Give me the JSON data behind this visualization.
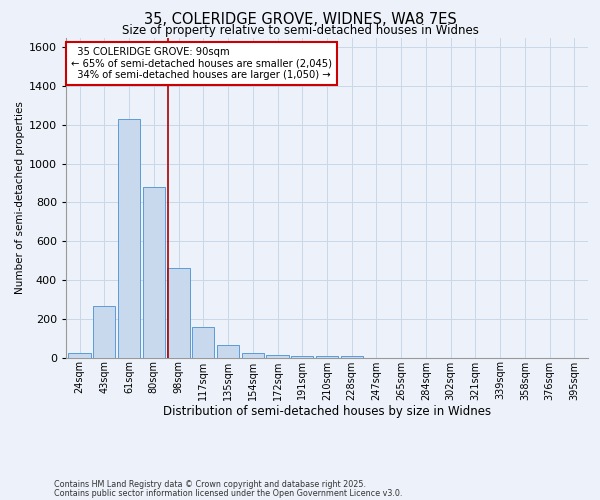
{
  "title1": "35, COLERIDGE GROVE, WIDNES, WA8 7ES",
  "title2": "Size of property relative to semi-detached houses in Widnes",
  "xlabel": "Distribution of semi-detached houses by size in Widnes",
  "ylabel": "Number of semi-detached properties",
  "categories": [
    "24sqm",
    "43sqm",
    "61sqm",
    "80sqm",
    "98sqm",
    "117sqm",
    "135sqm",
    "154sqm",
    "172sqm",
    "191sqm",
    "210sqm",
    "228sqm",
    "247sqm",
    "265sqm",
    "284sqm",
    "302sqm",
    "321sqm",
    "339sqm",
    "358sqm",
    "376sqm",
    "395sqm"
  ],
  "values": [
    25,
    265,
    1230,
    880,
    460,
    155,
    65,
    25,
    15,
    10,
    10,
    10,
    0,
    0,
    0,
    0,
    0,
    0,
    0,
    0,
    0
  ],
  "bar_color": "#c8d9ee",
  "bar_edge_color": "#5b9bd5",
  "grid_color": "#c8d8e8",
  "background_color": "#edf2fa",
  "fig_background_color": "#edf2fa",
  "annotation_box_color": "#ffffff",
  "annotation_box_edge": "#cc0000",
  "red_line_color": "#aa0000",
  "property_name": "35 COLERIDGE GROVE: 90sqm",
  "pct_smaller": "65% of semi-detached houses are smaller (2,045)",
  "pct_larger": "34% of semi-detached houses are larger (1,050)",
  "ylim": [
    0,
    1650
  ],
  "yticks": [
    0,
    200,
    400,
    600,
    800,
    1000,
    1200,
    1400,
    1600
  ],
  "footnote1": "Contains HM Land Registry data © Crown copyright and database right 2025.",
  "footnote2": "Contains public sector information licensed under the Open Government Licence v3.0."
}
